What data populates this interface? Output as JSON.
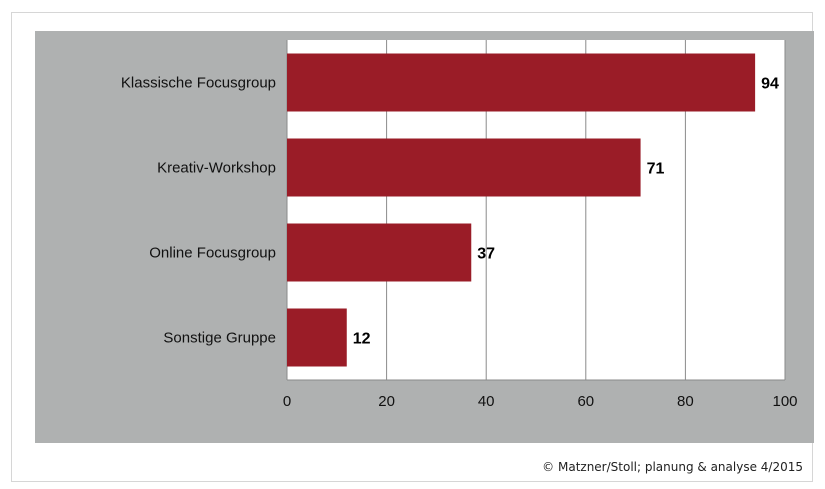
{
  "source": "© Matzner/Stoll; planung & analyse 4/2015",
  "colors": {
    "panel": "#afb1b1",
    "plot": "#ffffff",
    "bar": "#9a1c27",
    "grid": "#8a8a8a"
  },
  "chart_data": {
    "type": "bar",
    "orientation": "horizontal",
    "categories": [
      "Klassische Focusgroup",
      "Kreativ-Workshop",
      "Online Focusgroup",
      "Sonstige Gruppe"
    ],
    "values": [
      94,
      71,
      37,
      12
    ],
    "value_labels": [
      "94",
      "71",
      "37",
      "12"
    ],
    "xlim": [
      0,
      100
    ],
    "xticks": [
      0,
      20,
      40,
      60,
      80,
      100
    ],
    "grid": true,
    "legend": false
  }
}
